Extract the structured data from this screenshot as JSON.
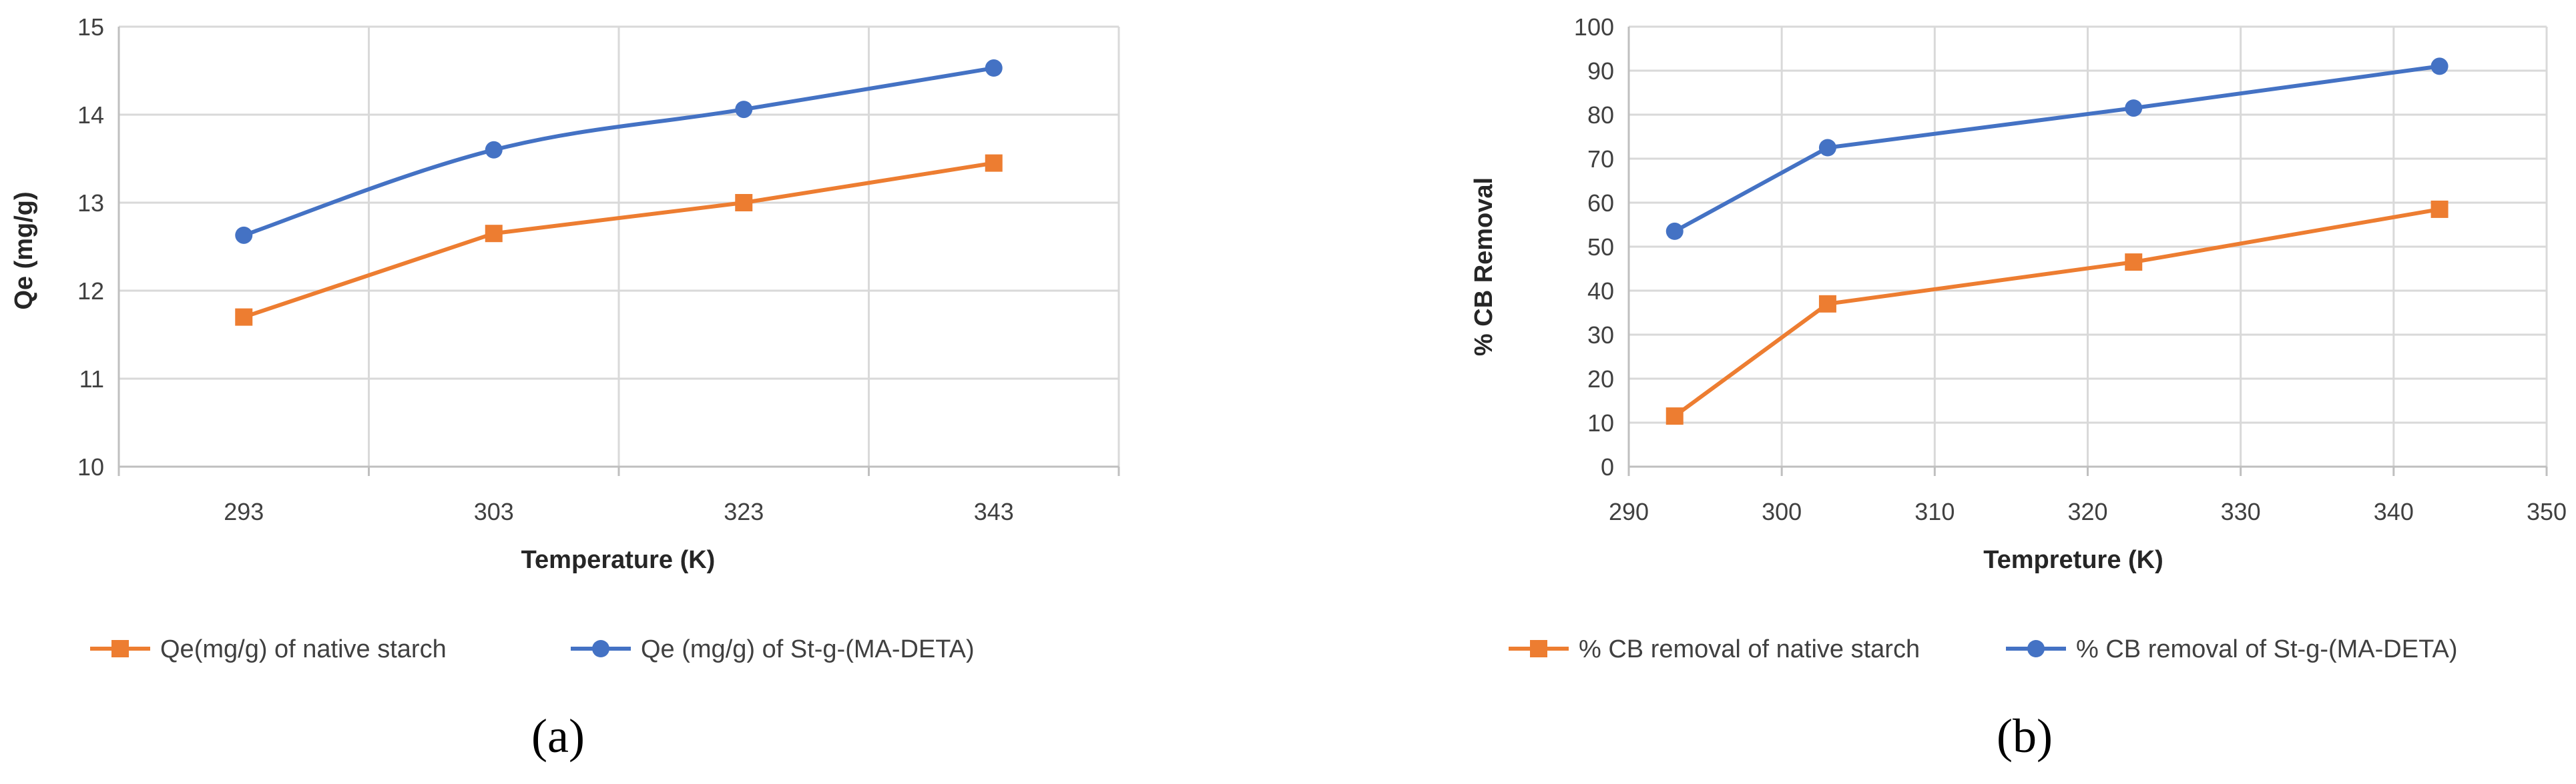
{
  "colors": {
    "orange": "#ed7d31",
    "blue": "#4472c4"
  },
  "chart_data": [
    {
      "type": "line",
      "panel_label": "(a)",
      "xlabel": "Temperature (K)",
      "ylabel": "Qe (mg/g)",
      "x_axis_type": "category",
      "categories": [
        "293",
        "303",
        "323",
        "343"
      ],
      "ylim": [
        10,
        15
      ],
      "yticks": [
        "10",
        "11",
        "12",
        "13",
        "14",
        "15"
      ],
      "grid": true,
      "legend_position": "bottom",
      "series": [
        {
          "name": "Qe(mg/g) of native starch",
          "color": "#ed7d31",
          "marker": "square",
          "smooth": false,
          "values": [
            11.7,
            12.65,
            13.0,
            13.45
          ]
        },
        {
          "name": "Qe (mg/g) of St-g-(MA-DETA)",
          "color": "#4472c4",
          "marker": "circle",
          "smooth": true,
          "values": [
            12.63,
            13.6,
            14.06,
            14.53
          ]
        }
      ]
    },
    {
      "type": "scatter",
      "panel_label": "(b)",
      "xlabel": "Tempreture (K)",
      "ylabel": "% CB Removal",
      "x_axis_type": "value",
      "xlim": [
        290,
        350
      ],
      "xticks": [
        "290",
        "300",
        "310",
        "320",
        "330",
        "340",
        "350"
      ],
      "ylim": [
        0,
        100
      ],
      "yticks": [
        "0",
        "10",
        "20",
        "30",
        "40",
        "50",
        "60",
        "70",
        "80",
        "90",
        "100"
      ],
      "grid": true,
      "legend_position": "bottom",
      "series": [
        {
          "name": "% CB removal of native starch",
          "color": "#ed7d31",
          "marker": "square",
          "smooth": false,
          "x": [
            293,
            303,
            323,
            343
          ],
          "values": [
            11.5,
            37,
            46.5,
            58.5
          ]
        },
        {
          "name": "% CB removal of  St-g-(MA-DETA)",
          "color": "#4472c4",
          "marker": "circle",
          "smooth": false,
          "x": [
            293,
            303,
            323,
            343
          ],
          "values": [
            53.5,
            72.5,
            81.5,
            91
          ]
        }
      ]
    }
  ]
}
